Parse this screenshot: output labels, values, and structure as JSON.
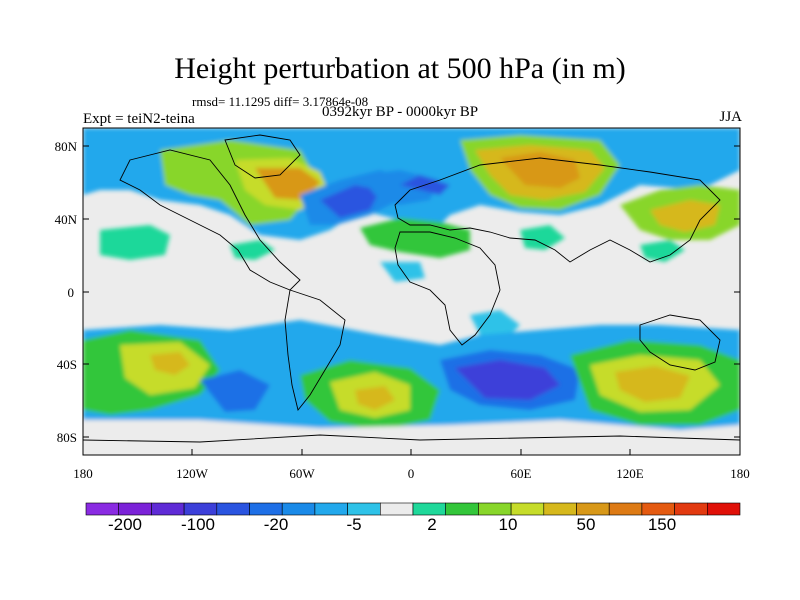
{
  "title": "Height perturbation at 500 hPa (in m)",
  "stats": "rmsd= 11.1295 diff= 3.17864e-08",
  "experiment": "Expt = teiN2-teina",
  "period": "0392kyr BP - 0000kyr BP",
  "season": "JJA",
  "lat_ticks": [
    "80N",
    "40N",
    "0",
    "40S",
    "80S"
  ],
  "lon_ticks": [
    "180",
    "120W",
    "60W",
    "0",
    "60E",
    "120E",
    "180"
  ],
  "colorbar": {
    "colors": [
      "#8a2be2",
      "#7b22d8",
      "#5f2bd6",
      "#3c3fd9",
      "#2a54e0",
      "#1e6fe6",
      "#1a8ae8",
      "#22a8ec",
      "#2ec2e8",
      "#ececec",
      "#1fd89a",
      "#33c63a",
      "#88d62a",
      "#c6dc2a",
      "#d6b81c",
      "#d89818",
      "#dd7a14",
      "#e45a10",
      "#e23a10",
      "#e01008"
    ],
    "labels": [
      "-200",
      "-100",
      "-20",
      "-5",
      "2",
      "10",
      "50",
      "150"
    ]
  }
}
